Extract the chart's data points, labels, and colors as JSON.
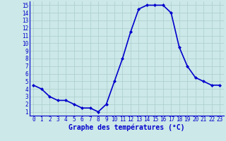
{
  "hours": [
    0,
    1,
    2,
    3,
    4,
    5,
    6,
    7,
    8,
    9,
    10,
    11,
    12,
    13,
    14,
    15,
    16,
    17,
    18,
    19,
    20,
    21,
    22,
    23
  ],
  "temps": [
    4.5,
    4.0,
    3.0,
    2.5,
    2.5,
    2.0,
    1.5,
    1.5,
    1.0,
    2.0,
    5.0,
    8.0,
    11.5,
    14.5,
    15.0,
    15.0,
    15.0,
    14.0,
    9.5,
    7.0,
    5.5,
    5.0,
    4.5,
    4.5
  ],
  "line_color": "#0000cc",
  "marker": "D",
  "marker_size": 2.0,
  "bg_color": "#cce8e8",
  "grid_color": "#aacccc",
  "xlabel": "Graphe des températures (°C)",
  "xlabel_color": "#0000cc",
  "tick_color": "#0000cc",
  "xlim": [
    -0.5,
    23.5
  ],
  "ylim": [
    0.5,
    15.5
  ],
  "yticks": [
    1,
    2,
    3,
    4,
    5,
    6,
    7,
    8,
    9,
    10,
    11,
    12,
    13,
    14,
    15
  ],
  "xticks": [
    0,
    1,
    2,
    3,
    4,
    5,
    6,
    7,
    8,
    9,
    10,
    11,
    12,
    13,
    14,
    15,
    16,
    17,
    18,
    19,
    20,
    21,
    22,
    23
  ],
  "linewidth": 1.2,
  "xlabel_fontsize": 7.0,
  "tick_fontsize": 5.5
}
